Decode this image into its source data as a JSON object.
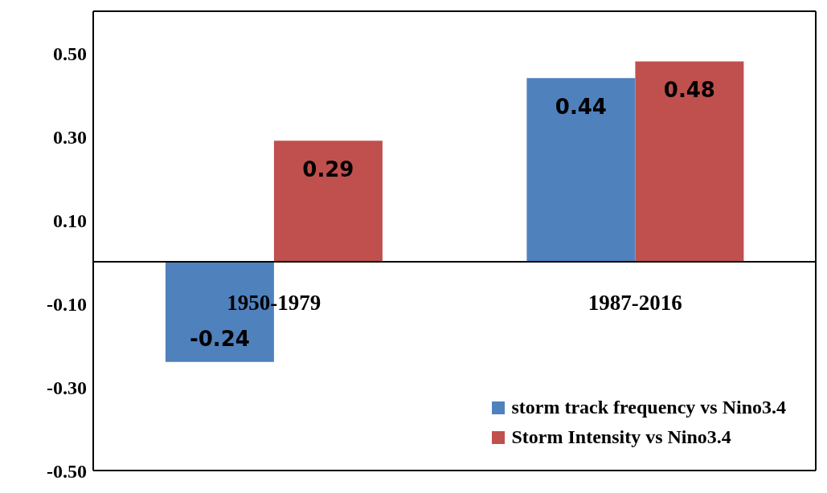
{
  "chart_data": {
    "type": "bar",
    "categories": [
      "1950-1979",
      "1987-2016"
    ],
    "series": [
      {
        "name": "storm track frequency vs Nino3.4",
        "color": "#4f81bd",
        "values": [
          -0.24,
          0.44
        ]
      },
      {
        "name": "Storm Intensity vs Nino3.4",
        "color": "#c0504d",
        "values": [
          0.29,
          0.48
        ]
      }
    ],
    "ylim": [
      -0.5,
      0.6
    ],
    "yticks": [
      {
        "value": -0.5,
        "label": "-0.50"
      },
      {
        "value": -0.3,
        "label": "-0.30"
      },
      {
        "value": -0.1,
        "label": "-0.10"
      },
      {
        "value": 0.1,
        "label": "0.10"
      },
      {
        "value": 0.3,
        "label": "0.30"
      },
      {
        "value": 0.5,
        "label": "0.50"
      }
    ],
    "grid": false,
    "legend": "bottom right",
    "data_labels": true
  }
}
